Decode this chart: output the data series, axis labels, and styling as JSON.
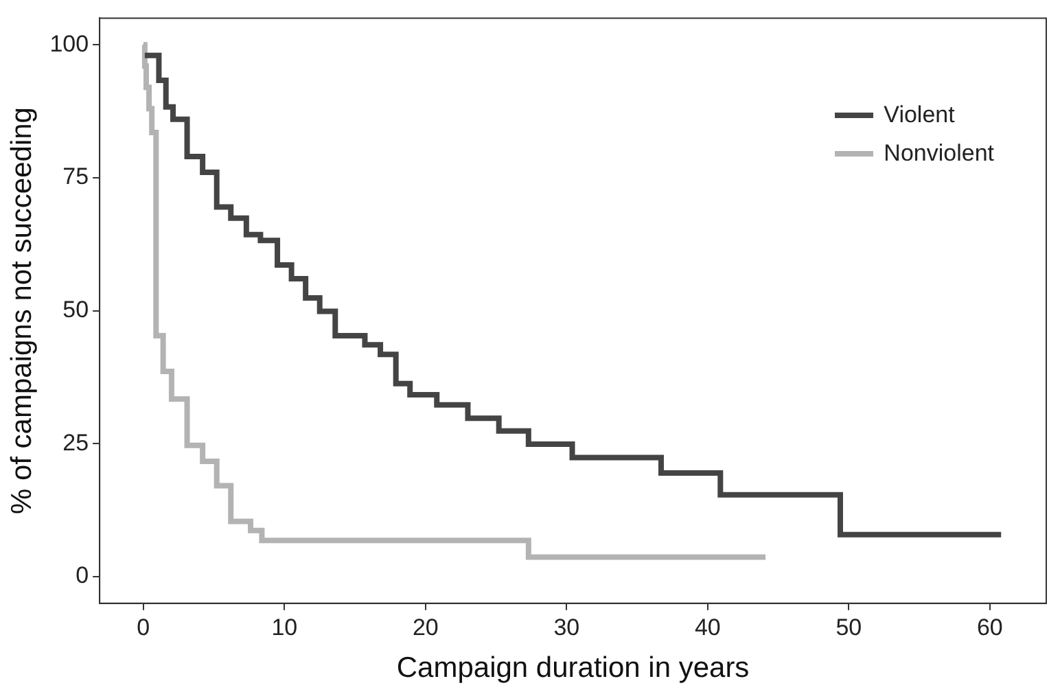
{
  "chart_data": {
    "type": "step",
    "xlabel": "Campaign duration in years",
    "ylabel": "% of campaigns not succeeding",
    "xlim": [
      -3.1,
      64
    ],
    "ylim": [
      -5,
      105
    ],
    "xticks": [
      0,
      10,
      20,
      30,
      40,
      50,
      60
    ],
    "yticks": [
      0,
      25,
      50,
      75,
      100
    ],
    "grid": false,
    "legend": "top right",
    "series": [
      {
        "name": "Violent",
        "color": "#444444",
        "x": [
          0.1,
          1.1,
          1.6,
          2.1,
          3.1,
          4.2,
          5.2,
          6.2,
          7.3,
          8.3,
          9.5,
          10.5,
          11.5,
          12.5,
          13.6,
          15.7,
          16.8,
          17.9,
          18.9,
          20.8,
          23.0,
          25.2,
          27.3,
          30.4,
          36.7,
          40.9,
          49.4,
          60.8
        ],
        "values": [
          98,
          93.3,
          88.3,
          86,
          79,
          76,
          69.5,
          67.4,
          64.3,
          63.2,
          58.6,
          56,
          52.4,
          49.9,
          45.3,
          43.6,
          41.8,
          36.3,
          34.2,
          32.3,
          29.8,
          27.4,
          24.9,
          22.4,
          19.5,
          15.4,
          7.9,
          7.9
        ]
      },
      {
        "name": "Nonviolent",
        "color": "#b3b3b3",
        "x": [
          0,
          0.1,
          0.2,
          0.4,
          0.6,
          0.9,
          1.4,
          2.0,
          3.1,
          4.2,
          5.2,
          6.2,
          7.6,
          8.4,
          27.3,
          44.1
        ],
        "values": [
          100,
          96,
          92,
          88,
          83.5,
          45.3,
          38.6,
          33.4,
          24.7,
          21.7,
          17.1,
          10.4,
          8.7,
          6.8,
          3.7,
          3.7
        ]
      }
    ]
  }
}
